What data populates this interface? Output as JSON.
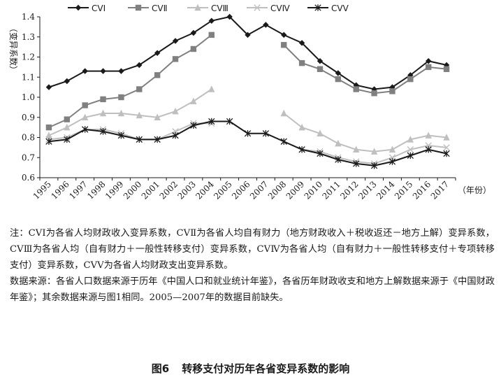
{
  "chart_data": {
    "type": "line",
    "ylabel": "（变异系数）",
    "xlabel": "（年份）",
    "ylim": [
      0.6,
      1.4
    ],
    "yticks": [
      "0.6",
      "0.7",
      "0.8",
      "0.9",
      "1.0",
      "1.1",
      "1.2",
      "1.3",
      "1.4"
    ],
    "x": [
      "1995",
      "1996",
      "1997",
      "1998",
      "1999",
      "2000",
      "2001",
      "2002",
      "2003",
      "2004",
      "2005",
      "2006",
      "2007",
      "2008",
      "2009",
      "2010",
      "2011",
      "2012",
      "2013",
      "2014",
      "2015",
      "2016",
      "2017"
    ],
    "legend_position": "top",
    "series": [
      {
        "name": "CVⅠ",
        "marker": "diamond",
        "color": "#1a1a1a",
        "values": [
          1.05,
          1.08,
          1.13,
          1.13,
          1.13,
          1.16,
          1.22,
          1.28,
          1.32,
          1.38,
          1.4,
          1.31,
          1.36,
          1.31,
          1.27,
          1.18,
          1.12,
          1.06,
          1.04,
          1.05,
          1.11,
          1.18,
          1.16
        ]
      },
      {
        "name": "CVⅡ",
        "marker": "square",
        "color": "#808080",
        "values": [
          0.85,
          0.89,
          0.96,
          0.99,
          1.0,
          1.04,
          1.11,
          1.19,
          1.24,
          1.31,
          null,
          null,
          null,
          1.26,
          1.17,
          1.14,
          1.09,
          1.04,
          1.02,
          1.03,
          1.09,
          1.15,
          1.14
        ]
      },
      {
        "name": "CVⅢ",
        "marker": "triangle",
        "color": "#bfbfbf",
        "values": [
          0.81,
          0.85,
          0.9,
          0.92,
          0.92,
          0.91,
          0.9,
          0.93,
          0.98,
          1.04,
          null,
          null,
          null,
          0.92,
          0.85,
          0.82,
          0.77,
          0.74,
          0.73,
          0.74,
          0.79,
          0.81,
          0.8
        ]
      },
      {
        "name": "CVⅣ",
        "marker": "x",
        "color": "#bfbfbf",
        "values": [
          0.79,
          0.8,
          0.84,
          0.84,
          0.82,
          0.79,
          0.79,
          0.83,
          0.87,
          0.87,
          null,
          null,
          null,
          0.78,
          0.74,
          0.73,
          0.7,
          0.68,
          0.67,
          0.7,
          0.74,
          0.76,
          0.75
        ]
      },
      {
        "name": "CVⅤ",
        "marker": "asterisk",
        "color": "#1a1a1a",
        "values": [
          0.78,
          0.79,
          0.84,
          0.83,
          0.81,
          0.79,
          0.79,
          0.81,
          0.86,
          0.88,
          0.88,
          0.82,
          0.82,
          0.78,
          0.74,
          0.72,
          0.69,
          0.67,
          0.66,
          0.68,
          0.71,
          0.74,
          0.72
        ]
      }
    ]
  },
  "notes": {
    "note": "注：CVⅠ为各省人均财政收入变异系数，CVⅡ为各省人均自有财力（地方财政收入＋税收返还－地方上解）变异系数，CVⅢ为各省人均（自有财力＋一般性转移支付）变异系数，CVⅣ为各省人均（自有财力＋一般性转移支付＋专项转移支付）变异系数，CVⅤ为各省人均财政支出变异系数。",
    "source": "数据来源：各省人口数据来源于历年《中国人口和就业统计年鉴》，各省历年财政收支和地方上解数据来源于《中国财政年鉴》；其余数据来源与图1相同。2005—2007年的数据目前缺失。"
  },
  "caption": {
    "number": "图6",
    "title": "转移支付对历年各省变异系数的影响"
  }
}
